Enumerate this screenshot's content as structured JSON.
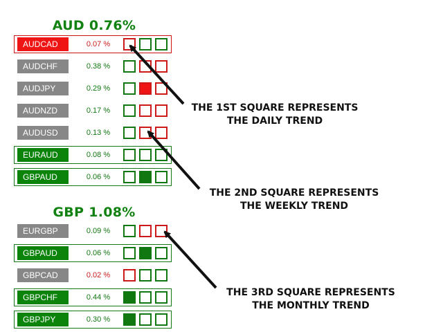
{
  "colors": {
    "up": "#117711",
    "down": "#cc1a1a",
    "neutral": "#878787"
  },
  "panels": [
    {
      "title": "AUD 0.76%",
      "rows": [
        {
          "pair": "AUDCAD",
          "pct": "0.07 %",
          "pair_color": "red",
          "pct_color": "red",
          "row_border": "red",
          "squares": [
            [
              "red",
              false
            ],
            [
              "green",
              false
            ],
            [
              "green",
              false
            ]
          ]
        },
        {
          "pair": "AUDCHF",
          "pct": "0.38 %",
          "pair_color": "grey",
          "pct_color": "green",
          "row_border": "none",
          "squares": [
            [
              "green",
              false
            ],
            [
              "red",
              false
            ],
            [
              "red",
              false
            ]
          ]
        },
        {
          "pair": "AUDJPY",
          "pct": "0.29 %",
          "pair_color": "grey",
          "pct_color": "green",
          "row_border": "none",
          "squares": [
            [
              "green",
              false
            ],
            [
              "red",
              true
            ],
            [
              "red",
              false
            ]
          ]
        },
        {
          "pair": "AUDNZD",
          "pct": "0.17 %",
          "pair_color": "grey",
          "pct_color": "green",
          "row_border": "none",
          "squares": [
            [
              "green",
              false
            ],
            [
              "red",
              false
            ],
            [
              "red",
              false
            ]
          ]
        },
        {
          "pair": "AUDUSD",
          "pct": "0.13 %",
          "pair_color": "grey",
          "pct_color": "green",
          "row_border": "none",
          "squares": [
            [
              "green",
              false
            ],
            [
              "red",
              false
            ],
            [
              "red",
              false
            ]
          ]
        },
        {
          "pair": "EURAUD",
          "pct": "0.08 %",
          "pair_color": "green",
          "pct_color": "green",
          "row_border": "green",
          "squares": [
            [
              "green",
              false
            ],
            [
              "green",
              false
            ],
            [
              "green",
              false
            ]
          ]
        },
        {
          "pair": "GBPAUD",
          "pct": "0.06 %",
          "pair_color": "green",
          "pct_color": "green",
          "row_border": "green",
          "squares": [
            [
              "green",
              false
            ],
            [
              "green",
              true
            ],
            [
              "green",
              false
            ]
          ]
        }
      ]
    },
    {
      "title": "GBP 1.08%",
      "rows": [
        {
          "pair": "EURGBP",
          "pct": "0.09 %",
          "pair_color": "grey",
          "pct_color": "green",
          "row_border": "none",
          "squares": [
            [
              "green",
              false
            ],
            [
              "red",
              false
            ],
            [
              "red",
              false
            ]
          ]
        },
        {
          "pair": "GBPAUD",
          "pct": "0.06 %",
          "pair_color": "green",
          "pct_color": "green",
          "row_border": "green",
          "squares": [
            [
              "green",
              false
            ],
            [
              "green",
              true
            ],
            [
              "green",
              false
            ]
          ]
        },
        {
          "pair": "GBPCAD",
          "pct": "0.02 %",
          "pair_color": "grey",
          "pct_color": "red",
          "row_border": "none",
          "squares": [
            [
              "red",
              false
            ],
            [
              "green",
              false
            ],
            [
              "green",
              false
            ]
          ]
        },
        {
          "pair": "GBPCHF",
          "pct": "0.44 %",
          "pair_color": "green",
          "pct_color": "green",
          "row_border": "green",
          "squares": [
            [
              "green",
              true
            ],
            [
              "green",
              false
            ],
            [
              "green",
              false
            ]
          ]
        },
        {
          "pair": "GBPJPY",
          "pct": "0.30 %",
          "pair_color": "green",
          "pct_color": "green",
          "row_border": "green",
          "squares": [
            [
              "green",
              true
            ],
            [
              "green",
              false
            ],
            [
              "green",
              false
            ]
          ]
        }
      ]
    }
  ],
  "annotations": [
    {
      "line1": "THE 1ST SQUARE REPRESENTS",
      "line2": "THE DAILY TREND"
    },
    {
      "line1": "THE 2ND SQUARE REPRESENTS",
      "line2": "THE WEEKLY TREND"
    },
    {
      "line1": "THE 3RD SQUARE REPRESENTS",
      "line2": "THE MONTHLY TREND"
    }
  ]
}
